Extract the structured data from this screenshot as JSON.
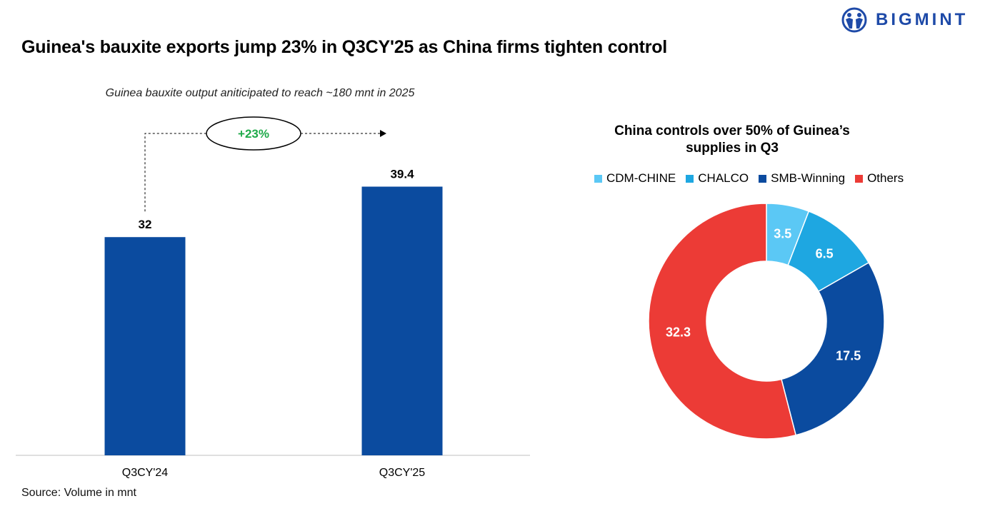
{
  "header": {
    "title": "Guinea's bauxite exports jump 23% in Q3CY'25 as China firms tighten control",
    "brand": "BIGMINT"
  },
  "footer": {
    "source": "Source: Volume in mnt"
  },
  "colors": {
    "bar": "#0b4b9f",
    "growth": "#1faa4a",
    "cdm": "#5bc8f5",
    "chalco": "#1ea7e1",
    "smb": "#0b4b9f",
    "others": "#ec3b36",
    "brand": "#1e4aa8"
  },
  "chart_data": [
    {
      "type": "bar",
      "subtitle": "Guinea bauxite output aniticipated to reach ~180 mnt in 2025",
      "categories": [
        "Q3CY'24",
        "Q3CY'25"
      ],
      "values": [
        32,
        39.4
      ],
      "value_labels": [
        "32",
        "39.4"
      ],
      "annotation": "+23%",
      "ylim": [
        0,
        45
      ],
      "xlabel": "",
      "ylabel": ""
    },
    {
      "type": "pie",
      "title": "China controls over 50% of Guinea’s supplies in Q3",
      "labels": [
        "CDM-CHINE",
        "CHALCO",
        "SMB-Winning",
        "Others"
      ],
      "values": [
        3.5,
        6.5,
        17.5,
        32.3
      ],
      "value_labels": [
        "3.5",
        "6.5",
        "17.5",
        "32.3"
      ],
      "legend": "top"
    }
  ]
}
